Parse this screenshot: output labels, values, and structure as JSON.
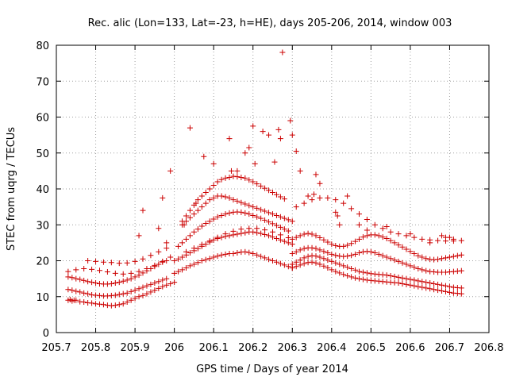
{
  "chart_data": {
    "type": "scatter",
    "title": "Rec. alic (Lon=133, Lat=-23, h=HE), days 205-206, 2014, window 003",
    "xlabel": "GPS time / Days of year 2014",
    "ylabel": "STEC from uqrg / TECUs",
    "xlim": [
      205.7,
      206.8
    ],
    "ylim": [
      0,
      80
    ],
    "x_ticks": [
      "205.7",
      "205.8",
      "205.9",
      "206",
      "206.1",
      "206.2",
      "206.3",
      "206.4",
      "206.5",
      "206.6",
      "206.7",
      "206.8"
    ],
    "y_ticks": [
      "0",
      "10",
      "20",
      "30",
      "40",
      "50",
      "60",
      "70",
      "80"
    ],
    "grid": true,
    "marker": "+",
    "color": "#cc0000",
    "series": [
      {
        "x": [
          205.73,
          205.735,
          205.74,
          205.745,
          205.75,
          205.76,
          205.77,
          205.78,
          205.79,
          205.8,
          205.81,
          205.82,
          205.83,
          205.84,
          205.85,
          205.86,
          205.87,
          205.88,
          205.89,
          205.9,
          205.91,
          205.92,
          205.93,
          205.94,
          205.95,
          205.96,
          205.97,
          205.98,
          205.99,
          206.0,
          205.73,
          205.74,
          205.75,
          205.76,
          205.77,
          205.78,
          205.79,
          205.8,
          205.81,
          205.82,
          205.83,
          205.84,
          205.85,
          205.86,
          205.87,
          205.88,
          205.89,
          205.9,
          205.91,
          205.92,
          205.93,
          205.94,
          205.95,
          205.96,
          205.97,
          205.98,
          205.73,
          205.74,
          205.75,
          205.76,
          205.77,
          205.78,
          205.79,
          205.8,
          205.81,
          205.82,
          205.83,
          205.84,
          205.85,
          205.86,
          205.87,
          205.88,
          205.89,
          205.9,
          205.91,
          205.92,
          205.93,
          205.94,
          205.95,
          205.96,
          205.97,
          205.98,
          205.73,
          205.75,
          205.77,
          205.79,
          205.81,
          205.83,
          205.85,
          205.87,
          205.89,
          205.91,
          205.93,
          205.95,
          205.97,
          205.99,
          205.78,
          205.8,
          205.82,
          205.84,
          205.86,
          205.88,
          205.9,
          205.92,
          205.94,
          205.96,
          205.98,
          205.91,
          205.92,
          205.96,
          205.97,
          205.98,
          205.99,
          206.0,
          206.01,
          206.02,
          206.03,
          206.04,
          206.05,
          206.06,
          206.07,
          206.08,
          206.09,
          206.1,
          206.11,
          206.12,
          206.13,
          206.14,
          206.15,
          206.16,
          206.17,
          206.18,
          206.19,
          206.2,
          206.21,
          206.22,
          206.23,
          206.24,
          206.25,
          206.26,
          206.27,
          206.28,
          206.29,
          206.3,
          206.0,
          206.01,
          206.02,
          206.03,
          206.04,
          206.05,
          206.06,
          206.07,
          206.08,
          206.09,
          206.1,
          206.11,
          206.12,
          206.13,
          206.14,
          206.15,
          206.16,
          206.17,
          206.18,
          206.19,
          206.2,
          206.21,
          206.22,
          206.23,
          206.24,
          206.25,
          206.26,
          206.27,
          206.28,
          206.29,
          206.3,
          206.01,
          206.02,
          206.03,
          206.04,
          206.05,
          206.06,
          206.07,
          206.08,
          206.09,
          206.1,
          206.11,
          206.12,
          206.13,
          206.14,
          206.15,
          206.16,
          206.17,
          206.18,
          206.19,
          206.2,
          206.21,
          206.22,
          206.23,
          206.24,
          206.25,
          206.26,
          206.27,
          206.28,
          206.29,
          206.02,
          206.03,
          206.04,
          206.05,
          206.06,
          206.07,
          206.08,
          206.09,
          206.1,
          206.11,
          206.12,
          206.13,
          206.14,
          206.15,
          206.16,
          206.17,
          206.18,
          206.19,
          206.2,
          206.21,
          206.22,
          206.23,
          206.24,
          206.25,
          206.26,
          206.27,
          206.28,
          206.29,
          206.3,
          206.02,
          206.03,
          206.04,
          206.05,
          206.06,
          206.07,
          206.08,
          206.09,
          206.1,
          206.11,
          206.12,
          206.13,
          206.14,
          206.15,
          206.16,
          206.17,
          206.18,
          206.19,
          206.2,
          206.21,
          206.22,
          206.23,
          206.24,
          206.25,
          206.26,
          206.27,
          206.28,
          206.03,
          206.05,
          206.07,
          206.09,
          206.11,
          206.13,
          206.15,
          206.17,
          206.19,
          206.21,
          206.23,
          206.25,
          206.27,
          206.29,
          206.025,
          206.04,
          206.055,
          206.075,
          206.1,
          206.14,
          206.145,
          206.16,
          206.18,
          206.19,
          206.2,
          206.205,
          206.225,
          206.24,
          206.255,
          206.265,
          206.27,
          206.275,
          206.295,
          206.3,
          206.3,
          206.31,
          206.32,
          206.33,
          206.34,
          206.35,
          206.36,
          206.37,
          206.38,
          206.39,
          206.4,
          206.41,
          206.42,
          206.43,
          206.44,
          206.45,
          206.46,
          206.47,
          206.48,
          206.49,
          206.5,
          206.51,
          206.52,
          206.53,
          206.54,
          206.55,
          206.56,
          206.57,
          206.58,
          206.59,
          206.6,
          206.61,
          206.62,
          206.63,
          206.64,
          206.65,
          206.66,
          206.67,
          206.68,
          206.69,
          206.7,
          206.71,
          206.72,
          206.73,
          206.3,
          206.31,
          206.32,
          206.33,
          206.34,
          206.35,
          206.36,
          206.37,
          206.38,
          206.39,
          206.4,
          206.41,
          206.42,
          206.43,
          206.44,
          206.45,
          206.46,
          206.47,
          206.48,
          206.49,
          206.5,
          206.51,
          206.52,
          206.53,
          206.54,
          206.55,
          206.56,
          206.57,
          206.58,
          206.59,
          206.6,
          206.61,
          206.62,
          206.63,
          206.64,
          206.65,
          206.66,
          206.67,
          206.68,
          206.69,
          206.7,
          206.71,
          206.72,
          206.73,
          206.3,
          206.31,
          206.32,
          206.33,
          206.34,
          206.35,
          206.36,
          206.37,
          206.38,
          206.39,
          206.4,
          206.41,
          206.42,
          206.43,
          206.44,
          206.45,
          206.46,
          206.47,
          206.48,
          206.49,
          206.5,
          206.51,
          206.52,
          206.53,
          206.54,
          206.55,
          206.56,
          206.57,
          206.58,
          206.59,
          206.6,
          206.61,
          206.62,
          206.63,
          206.64,
          206.65,
          206.66,
          206.67,
          206.68,
          206.69,
          206.7,
          206.71,
          206.72,
          206.73,
          206.3,
          206.31,
          206.32,
          206.33,
          206.34,
          206.35,
          206.36,
          206.37,
          206.38,
          206.39,
          206.4,
          206.41,
          206.42,
          206.43,
          206.44,
          206.45,
          206.46,
          206.47,
          206.48,
          206.49,
          206.5,
          206.51,
          206.52,
          206.53,
          206.54,
          206.55,
          206.56,
          206.57,
          206.58,
          206.59,
          206.6,
          206.61,
          206.62,
          206.63,
          206.64,
          206.65,
          206.66,
          206.67,
          206.68,
          206.69,
          206.7,
          206.71,
          206.72,
          206.73,
          206.31,
          206.33,
          206.35,
          206.37,
          206.39,
          206.41,
          206.43,
          206.45,
          206.47,
          206.49,
          206.51,
          206.53,
          206.55,
          206.57,
          206.59,
          206.61,
          206.63,
          206.65,
          206.67,
          206.69,
          206.71,
          206.73,
          206.31,
          206.32,
          206.34,
          206.355,
          206.36,
          206.37,
          206.41,
          206.415,
          206.42,
          206.44,
          206.47,
          206.49,
          206.54,
          206.6,
          206.65,
          206.68,
          206.69,
          206.7,
          206.71
        ],
        "y": [
          9,
          9.2,
          8.8,
          9,
          9,
          8.6,
          8.5,
          8.3,
          8.2,
          8,
          7.9,
          7.8,
          7.6,
          7.5,
          7.6,
          7.8,
          8,
          8.5,
          9,
          9.5,
          10,
          10.3,
          10.8,
          11.3,
          11.8,
          12.3,
          12.8,
          13.2,
          13.6,
          14,
          12,
          11.8,
          11.5,
          11.3,
          11,
          10.8,
          10.5,
          10.4,
          10.3,
          10.2,
          10.2,
          10.3,
          10.4,
          10.6,
          10.8,
          11,
          11.4,
          11.8,
          12.2,
          12.6,
          13,
          13.4,
          13.8,
          14.2,
          14.6,
          15,
          15.5,
          15.3,
          15,
          14.8,
          14.5,
          14.2,
          14,
          13.8,
          13.6,
          13.5,
          13.5,
          13.6,
          13.8,
          14,
          14.3,
          14.6,
          15,
          15.5,
          16,
          16.6,
          17.2,
          17.8,
          18.4,
          19,
          19.6,
          20,
          17,
          17.5,
          17.8,
          17.6,
          17.3,
          16.9,
          16.5,
          16.3,
          16.5,
          17,
          17.8,
          18.7,
          19.8,
          21,
          20,
          19.8,
          19.6,
          19.5,
          19.3,
          19.4,
          19.8,
          20.5,
          21.5,
          22.5,
          23.5,
          27,
          34,
          29,
          37.5,
          25,
          45,
          16.5,
          17,
          17.5,
          18,
          18.6,
          19,
          19.5,
          20,
          20.3,
          20.6,
          21,
          21.3,
          21.6,
          21.8,
          22,
          22,
          22.2,
          22.4,
          22.5,
          22.3,
          22,
          21.6,
          21.2,
          20.8,
          20.4,
          20,
          19.6,
          19.2,
          18.8,
          18.4,
          18,
          20,
          20.5,
          21,
          21.6,
          22.2,
          22.8,
          23.4,
          24,
          24.6,
          25.2,
          25.8,
          26.2,
          26.5,
          26.8,
          27,
          27.2,
          27.4,
          27.6,
          27.8,
          28,
          28,
          27.8,
          27.6,
          27.3,
          27,
          26.6,
          26.2,
          25.8,
          25.4,
          25,
          24.6,
          24,
          25,
          26,
          27,
          28,
          28.8,
          29.6,
          30.4,
          31,
          31.6,
          32.2,
          32.6,
          33,
          33.3,
          33.5,
          33.6,
          33.5,
          33.3,
          33,
          32.6,
          32.2,
          31.8,
          31.3,
          30.8,
          30.3,
          29.8,
          29.3,
          28.8,
          28.3,
          30,
          31,
          32,
          33,
          34,
          35,
          36,
          37,
          37.5,
          38,
          38,
          37.8,
          37.5,
          37,
          36.6,
          36.2,
          35.8,
          35.4,
          35,
          34.6,
          34.2,
          33.8,
          33.4,
          33,
          32.6,
          32.2,
          31.8,
          31.4,
          31,
          31,
          32.5,
          34,
          35.5,
          37,
          38,
          39,
          40,
          41,
          42,
          42.6,
          43,
          43.2,
          43.5,
          43.4,
          43.2,
          43,
          42.5,
          42,
          41.4,
          40.8,
          40.2,
          39.6,
          39,
          38.4,
          37.8,
          37.2,
          22.5,
          23.5,
          24.5,
          25.5,
          26.5,
          27.5,
          28.2,
          28.8,
          29,
          29,
          28.6,
          28,
          27.2,
          26.4,
          30,
          57,
          36,
          49,
          47,
          54,
          45,
          45,
          50,
          51.5,
          57.5,
          47,
          56,
          55,
          47.5,
          56.5,
          54,
          78,
          59,
          55,
          18,
          18.4,
          18.8,
          19.2,
          19.5,
          19.6,
          19.4,
          19,
          18.5,
          18,
          17.5,
          17,
          16.6,
          16.2,
          15.8,
          15.5,
          15.2,
          15,
          14.8,
          14.6,
          14.5,
          14.4,
          14.3,
          14.2,
          14.1,
          14,
          13.9,
          13.8,
          13.6,
          13.4,
          13.2,
          13,
          12.8,
          12.6,
          12.4,
          12.2,
          12,
          11.8,
          11.6,
          11.4,
          11.2,
          11,
          10.9,
          10.8,
          19,
          19.6,
          20.2,
          20.8,
          21.2,
          21.4,
          21.3,
          21,
          20.6,
          20.2,
          19.8,
          19.4,
          19,
          18.6,
          18.2,
          17.8,
          17.4,
          17,
          16.8,
          16.6,
          16.4,
          16.3,
          16.2,
          16.1,
          16,
          15.8,
          15.6,
          15.4,
          15.2,
          15,
          14.8,
          14.6,
          14.4,
          14.2,
          14,
          13.8,
          13.6,
          13.4,
          13.2,
          13,
          12.8,
          12.6,
          12.5,
          12.4,
          22,
          22.5,
          23,
          23.4,
          23.6,
          23.6,
          23.4,
          23,
          22.6,
          22.2,
          21.8,
          21.5,
          21.3,
          21.2,
          21.3,
          21.5,
          21.8,
          22.2,
          22.5,
          22.6,
          22.5,
          22.2,
          21.8,
          21.4,
          21,
          20.6,
          20.2,
          19.8,
          19.4,
          19,
          18.6,
          18.2,
          17.8,
          17.5,
          17.2,
          17,
          16.9,
          16.8,
          16.8,
          16.8,
          16.9,
          17,
          17.1,
          17.2,
          26,
          26.5,
          27,
          27.4,
          27.6,
          27.4,
          27,
          26.4,
          25.8,
          25.2,
          24.6,
          24.2,
          24,
          24,
          24.3,
          24.8,
          25.4,
          26,
          26.6,
          27,
          27.2,
          27.2,
          27,
          26.6,
          26.2,
          25.6,
          25,
          24.4,
          23.8,
          23.2,
          22.6,
          22,
          21.4,
          21,
          20.6,
          20.4,
          20.3,
          20.4,
          20.6,
          20.8,
          21,
          21.2,
          21.4,
          21.6,
          35,
          36,
          37,
          37.5,
          37.5,
          37,
          36,
          34.5,
          33,
          31.5,
          30,
          29,
          28,
          27.5,
          27,
          26.5,
          26,
          25.8,
          25.6,
          25.5,
          25.5,
          25.6,
          50.5,
          45,
          38,
          38.5,
          44,
          41.5,
          33.5,
          32.5,
          30,
          38,
          30,
          28.5,
          29.5,
          27.5,
          25,
          27,
          26.5,
          26.5,
          26
        ],
        "marker": "+"
      }
    ]
  }
}
